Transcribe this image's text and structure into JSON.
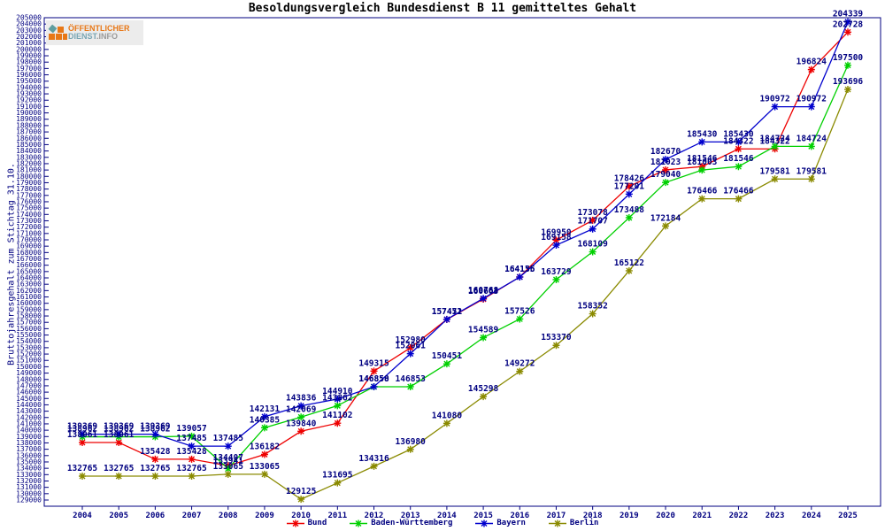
{
  "title": "Besoldungsvergleich Bundesdienst B 11 gemitteltes Gehalt",
  "logo": {
    "line1": "ÖFFENTLICHER",
    "line2_a": "DIENST",
    "line2_b": ".INFO"
  },
  "colors": {
    "label_text": "#000080",
    "axis": "#000080",
    "bund": "#ee0000",
    "baden_wuerttemberg": "#00d000",
    "bayern": "#0000cd",
    "berlin": "#8a8a00"
  },
  "chart_data": {
    "type": "line",
    "title": "Besoldungsvergleich Bundesdienst B 11 gemitteltes Gehalt",
    "xlabel": "",
    "ylabel": "Bruttojahresgehalt zum Stichtag 31.10.",
    "ylim": [
      129000,
      205000
    ],
    "ytick_step": 1000,
    "grid": false,
    "legend_position": "bottom",
    "marker": "asterisk",
    "point_labels": true,
    "categories": [
      "2004",
      "2005",
      "2006",
      "2007",
      "2008",
      "2009",
      "2010",
      "2011",
      "2012",
      "2013",
      "2014",
      "2015",
      "2016",
      "2017",
      "2018",
      "2019",
      "2020",
      "2021",
      "2022",
      "2023",
      "2024",
      "2025"
    ],
    "series": [
      {
        "name": "Bund",
        "color": "#ee0000",
        "values": [
          138061,
          138061,
          135428,
          135428,
          134407,
          136182,
          139840,
          141102,
          149315,
          152980,
          157451,
          160663,
          164155,
          169950,
          173078,
          178426,
          181023,
          181546,
          184322,
          184322,
          196824,
          202728
        ]
      },
      {
        "name": "Baden-Württemberg",
        "color": "#00d000",
        "values": [
          138962,
          138962,
          138962,
          139057,
          133941,
          140385,
          142069,
          143862,
          146850,
          146853,
          150451,
          154589,
          157526,
          163729,
          168109,
          173488,
          179040,
          181003,
          181546,
          184724,
          184724,
          197500
        ]
      },
      {
        "name": "Bayern",
        "color": "#0000cd",
        "values": [
          139369,
          139369,
          139369,
          137485,
          137485,
          142131,
          143836,
          144910,
          146858,
          152061,
          157472,
          160768,
          164136,
          169158,
          171707,
          177201,
          182670,
          185430,
          185430,
          190972,
          190972,
          204339
        ]
      },
      {
        "name": "Berlin",
        "color": "#8a8a00",
        "values": [
          132765,
          132765,
          132765,
          132765,
          133065,
          133065,
          129125,
          131695,
          134316,
          136980,
          141080,
          145298,
          149272,
          153370,
          158352,
          165122,
          172184,
          176466,
          176466,
          179581,
          179581,
          193696
        ]
      }
    ]
  }
}
